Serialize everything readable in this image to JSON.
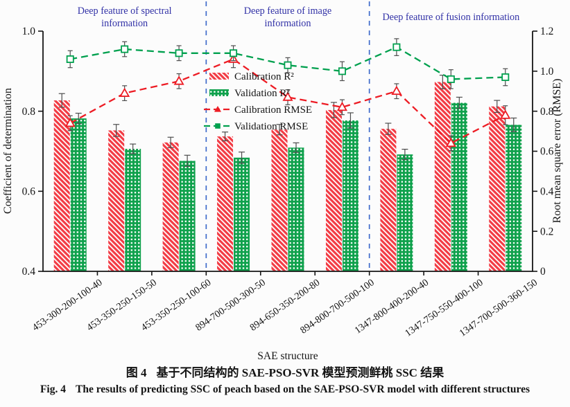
{
  "figure": {
    "caption_zh": {
      "label": "图 4",
      "text": "基于不同结构的 SAE-PSO-SVR 模型预测鲜桃 SSC 结果"
    },
    "caption_en": {
      "label": "Fig. 4",
      "text": "The results of predicting SSC of peach based on the SAE-PSO-SVR model with different structures"
    }
  },
  "chart_data": {
    "type": "bar+line",
    "categories": [
      "453-300-200-100-40",
      "453-350-250-150-50",
      "453-350-250-100-60",
      "894-700-500-300-50",
      "894-650-350-200-80",
      "894-800-700-500-100",
      "1347-800-400-200-40",
      "1347-750-550-400-100",
      "1347-700-500-360-150"
    ],
    "series": [
      {
        "name": "Calibration R²",
        "type": "bar",
        "axis": "left",
        "color": "#f23b44",
        "values": [
          0.827,
          0.752,
          0.722,
          0.737,
          0.754,
          0.803,
          0.756,
          0.873,
          0.812
        ],
        "errors": [
          0.017,
          0.015,
          0.013,
          0.011,
          0.013,
          0.019,
          0.014,
          0.017,
          0.015
        ]
      },
      {
        "name": "Validation R²",
        "type": "bar",
        "axis": "left",
        "color": "#0fa14c",
        "values": [
          0.782,
          0.706,
          0.676,
          0.684,
          0.709,
          0.777,
          0.692,
          0.821,
          0.766
        ],
        "errors": [
          0.013,
          0.012,
          0.014,
          0.014,
          0.012,
          0.019,
          0.013,
          0.014,
          0.017
        ]
      },
      {
        "name": "Calibration RMSE",
        "type": "line",
        "marker": "triangle",
        "axis": "right",
        "color": "#ed1c24",
        "values": [
          0.74,
          0.89,
          0.95,
          1.06,
          0.87,
          0.82,
          0.9,
          0.64,
          0.78
        ],
        "errors": [
          0.02,
          0.02,
          0.02,
          0.025,
          0.02,
          0.02,
          0.02,
          0.02,
          0.03
        ]
      },
      {
        "name": "Validation RMSE",
        "type": "line",
        "marker": "square",
        "axis": "right",
        "color": "#00a04e",
        "values": [
          1.06,
          1.11,
          1.09,
          1.09,
          1.03,
          1.0,
          1.12,
          0.96,
          0.97
        ],
        "errors": [
          0.025,
          0.02,
          0.02,
          0.02,
          0.02,
          0.03,
          0.025,
          0.03,
          0.025
        ]
      }
    ],
    "sections": [
      {
        "label": "Deep feature of spectral information",
        "lines": [
          "Deep feature of spectral",
          "information"
        ],
        "start": 0,
        "end": 3
      },
      {
        "label": "Deep feature of image information",
        "lines": [
          "Deep feature of image",
          "information"
        ],
        "start": 3,
        "end": 6
      },
      {
        "label": "Deep feature of fusion information",
        "lines": [
          "Deep feature of fusion information"
        ],
        "start": 6,
        "end": 9
      }
    ],
    "left_axis": {
      "label": "Coefficient of determination",
      "min": 0.4,
      "max": 1.0,
      "ticks": [
        "0.4",
        "0.6",
        "0.8",
        "1.0"
      ]
    },
    "right_axis": {
      "label": "Root mean square error (RMSE)",
      "min": 0,
      "max": 1.2,
      "ticks": [
        "0",
        "0.2",
        "0.4",
        "0.6",
        "0.8",
        "1.0",
        "1.2"
      ]
    },
    "x_axis": {
      "label": "SAE structure"
    },
    "legend": {
      "position": "inside-upper-left-of-center"
    },
    "grid": false,
    "colors": {
      "divider": "#3f6bcb",
      "section_label": "#3030a6",
      "error_bar": "#4d4d4d",
      "axis": "#141414",
      "hatch": "#ffffff"
    }
  }
}
